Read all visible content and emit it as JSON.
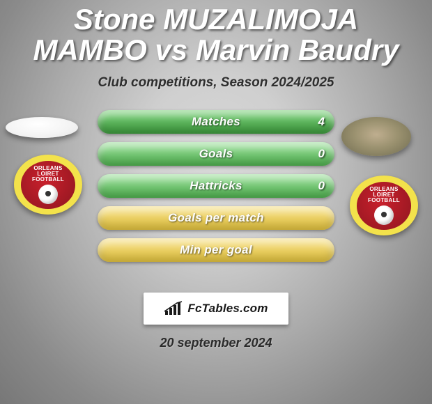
{
  "title": "Stone MUZALIMOJA MAMBO vs Marvin Baudry",
  "title_fontsize": 42,
  "subtitle": "Club competitions, Season 2024/2025",
  "subtitle_fontsize": 19,
  "bars": [
    {
      "label": "Matches",
      "value_left": "",
      "value_right": "4",
      "color1": "#7fd27e",
      "color2": "#3c9a3c"
    },
    {
      "label": "Goals",
      "value_left": "",
      "value_right": "0",
      "color1": "#9fe09e",
      "color2": "#4fb14f"
    },
    {
      "label": "Hattricks",
      "value_left": "",
      "value_right": "0",
      "color1": "#9fe09e",
      "color2": "#4fb14f"
    },
    {
      "label": "Goals per match",
      "value_left": "",
      "value_right": "",
      "color1": "#f6e08a",
      "color2": "#e2c23e"
    },
    {
      "label": "Min per goal",
      "value_left": "",
      "value_right": "",
      "color1": "#f6e08a",
      "color2": "#e2c23e"
    }
  ],
  "bar_label_fontsize": 17,
  "crest": {
    "outer_color": "#f3e24b",
    "inner_color": "#c9202c",
    "text_top": "ORLEANS",
    "text_mid": "LOIRET",
    "text_bot": "FOOTBALL"
  },
  "footer_brand": "FcTables.com",
  "date": "20 september 2024",
  "date_fontsize": 18,
  "colors": {
    "title": "#ffffff",
    "subtitle": "#2e2e2e",
    "bar_label": "#fefefe",
    "bar_value": "#ffffff",
    "footer_bg": "#ffffff",
    "footer_text": "#191919"
  }
}
